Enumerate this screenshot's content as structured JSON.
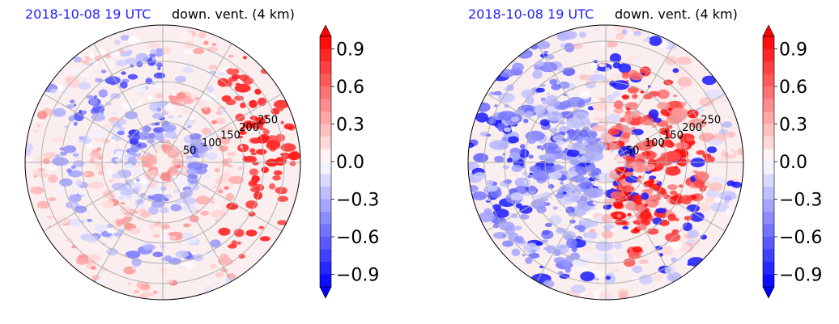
{
  "panels": [
    {
      "id": "left",
      "title_left": "2018-10-08 19 UTC",
      "title_right": "down. vent. (4 km)"
    },
    {
      "id": "right",
      "title_left": "2018-10-08 19 UTC",
      "title_right": "down. vent. (4 km)"
    }
  ],
  "chart_data": [
    {
      "type": "heatmap",
      "projection": "polar",
      "title_left": "2018-10-08 19 UTC",
      "title_right": "down. vent. (4 km)",
      "radial_ticks": [
        50,
        100,
        150,
        200,
        250
      ],
      "colorbar": {
        "ticks": [
          0.9,
          0.6,
          0.3,
          0.0,
          -0.3,
          -0.6,
          -0.9
        ],
        "tick_labels": [
          "0.9",
          "0.6",
          "0.3",
          "0.0",
          "−0.3",
          "−0.6",
          "−0.9"
        ],
        "range": [
          -1.0,
          1.0
        ],
        "extend": "both",
        "colormap": "blue-white-red",
        "colors": {
          "min": "#0000ff",
          "mid": "#ffffff",
          "max": "#ff0000"
        }
      },
      "grid": true
    },
    {
      "type": "heatmap",
      "projection": "polar",
      "title_left": "2018-10-08 19 UTC",
      "title_right": "down. vent. (4 km)",
      "radial_ticks": [
        50,
        100,
        150,
        200,
        250
      ],
      "colorbar": {
        "ticks": [
          0.9,
          0.6,
          0.3,
          0.0,
          -0.3,
          -0.6,
          -0.9
        ],
        "tick_labels": [
          "0.9",
          "0.6",
          "0.3",
          "0.0",
          "−0.3",
          "−0.6",
          "−0.9"
        ],
        "range": [
          -1.0,
          1.0
        ],
        "extend": "both",
        "colormap": "blue-white-red",
        "colors": {
          "min": "#0000ff",
          "mid": "#ffffff",
          "max": "#ff0000"
        }
      },
      "grid": true
    }
  ]
}
